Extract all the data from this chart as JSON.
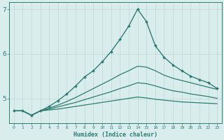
{
  "xlabel": "Humidex (Indice chaleur)",
  "bg_color": "#d9eded",
  "line_color": "#2e7d72",
  "grid_color": "#bcd8d5",
  "xlim": [
    -0.5,
    23.5
  ],
  "ylim": [
    4.45,
    7.15
  ],
  "xticks": [
    0,
    1,
    2,
    3,
    4,
    5,
    6,
    7,
    8,
    9,
    10,
    11,
    12,
    13,
    14,
    15,
    16,
    17,
    18,
    19,
    20,
    21,
    22,
    23
  ],
  "yticks": [
    5,
    6,
    7
  ],
  "series": [
    {
      "x": [
        0,
        1,
        2,
        3,
        4,
        5,
        6,
        7,
        8,
        9,
        10,
        11,
        12,
        13,
        14,
        15,
        16,
        17,
        18,
        19,
        20,
        21,
        22,
        23
      ],
      "y": [
        4.72,
        4.72,
        4.62,
        4.72,
        4.82,
        4.95,
        5.1,
        5.28,
        5.48,
        5.62,
        5.82,
        6.05,
        6.32,
        6.62,
        7.0,
        6.72,
        6.18,
        5.92,
        5.75,
        5.62,
        5.5,
        5.42,
        5.35,
        5.22
      ],
      "marker": "D",
      "markersize": 2.0,
      "linewidth": 1.0
    },
    {
      "x": [
        0,
        1,
        2,
        3,
        4,
        5,
        6,
        7,
        8,
        9,
        10,
        11,
        12,
        13,
        14,
        15,
        16,
        17,
        18,
        19,
        20,
        21,
        22,
        23
      ],
      "y": [
        4.72,
        4.72,
        4.62,
        4.72,
        4.78,
        4.85,
        4.93,
        5.02,
        5.12,
        5.22,
        5.32,
        5.42,
        5.53,
        5.62,
        5.72,
        5.7,
        5.62,
        5.52,
        5.45,
        5.4,
        5.35,
        5.3,
        5.25,
        5.2
      ],
      "marker": null,
      "linewidth": 0.9
    },
    {
      "x": [
        0,
        1,
        2,
        3,
        4,
        5,
        6,
        7,
        8,
        9,
        10,
        11,
        12,
        13,
        14,
        15,
        16,
        17,
        18,
        19,
        20,
        21,
        22,
        23
      ],
      "y": [
        4.72,
        4.72,
        4.62,
        4.72,
        4.76,
        4.81,
        4.86,
        4.91,
        4.97,
        5.03,
        5.09,
        5.15,
        5.22,
        5.28,
        5.35,
        5.33,
        5.28,
        5.22,
        5.17,
        5.14,
        5.1,
        5.07,
        5.04,
        5.0
      ],
      "marker": null,
      "linewidth": 0.9
    },
    {
      "x": [
        0,
        1,
        2,
        3,
        4,
        5,
        6,
        7,
        8,
        9,
        10,
        11,
        12,
        13,
        14,
        15,
        16,
        17,
        18,
        19,
        20,
        21,
        22,
        23
      ],
      "y": [
        4.72,
        4.72,
        4.62,
        4.72,
        4.74,
        4.76,
        4.79,
        4.82,
        4.85,
        4.88,
        4.91,
        4.94,
        4.97,
        5.0,
        5.03,
        5.01,
        4.98,
        4.96,
        4.94,
        4.92,
        4.91,
        4.9,
        4.89,
        4.88
      ],
      "marker": null,
      "linewidth": 0.9
    }
  ]
}
